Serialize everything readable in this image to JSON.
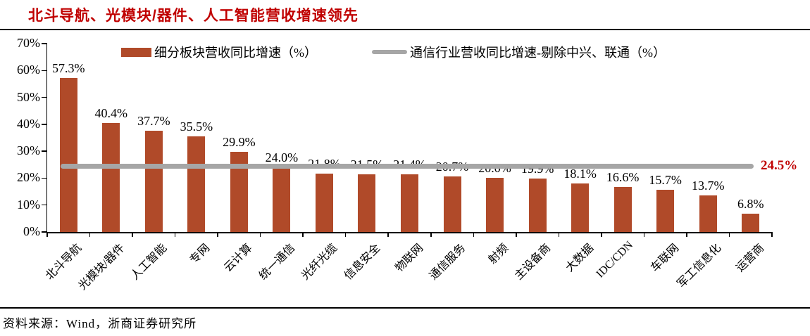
{
  "title": "北斗导航、光模块/器件、人工智能营收增速领先",
  "source": "资料来源：Wind，浙商证券研究所",
  "colors": {
    "title": "#C00000",
    "bar": "#B04A29",
    "reference_line": "#A6A6A6",
    "annotation": "#C00000",
    "axis": "#000000",
    "background": "#FFFFFF"
  },
  "legend": {
    "items": [
      {
        "type": "bar",
        "label": "细分板块营收同比增速（%）"
      },
      {
        "type": "line",
        "label": "通信行业营收同比增速-剔除中兴、联通（%）"
      }
    ]
  },
  "chart_data": {
    "type": "bar",
    "title": "北斗导航、光模块/器件、人工智能营收增速领先",
    "categories": [
      "北斗导航",
      "光模块/器件",
      "人工智能",
      "专网",
      "云计算",
      "统一通信",
      "光纤光缆",
      "信息安全",
      "物联网",
      "通信服务",
      "射频",
      "主设备商",
      "大数据",
      "IDC/CDN",
      "车联网",
      "军工信息化",
      "运营商"
    ],
    "series": [
      {
        "name": "细分板块营收同比增速（%）",
        "type": "bar",
        "values": [
          57.3,
          40.4,
          37.7,
          35.5,
          29.9,
          24.0,
          21.8,
          21.5,
          21.4,
          20.7,
          20.0,
          19.9,
          18.1,
          16.6,
          15.7,
          13.7,
          6.8
        ]
      },
      {
        "name": "通信行业营收同比增速-剔除中兴、联通（%）",
        "type": "reference-line",
        "value": 24.5,
        "label": "24.5%"
      }
    ],
    "xlabel": "",
    "ylabel": "",
    "ylim": [
      0,
      70
    ],
    "ytick_step": 10,
    "ytick_suffix": "%",
    "value_label_suffix": "%",
    "legend_position": "top",
    "grid": false
  }
}
